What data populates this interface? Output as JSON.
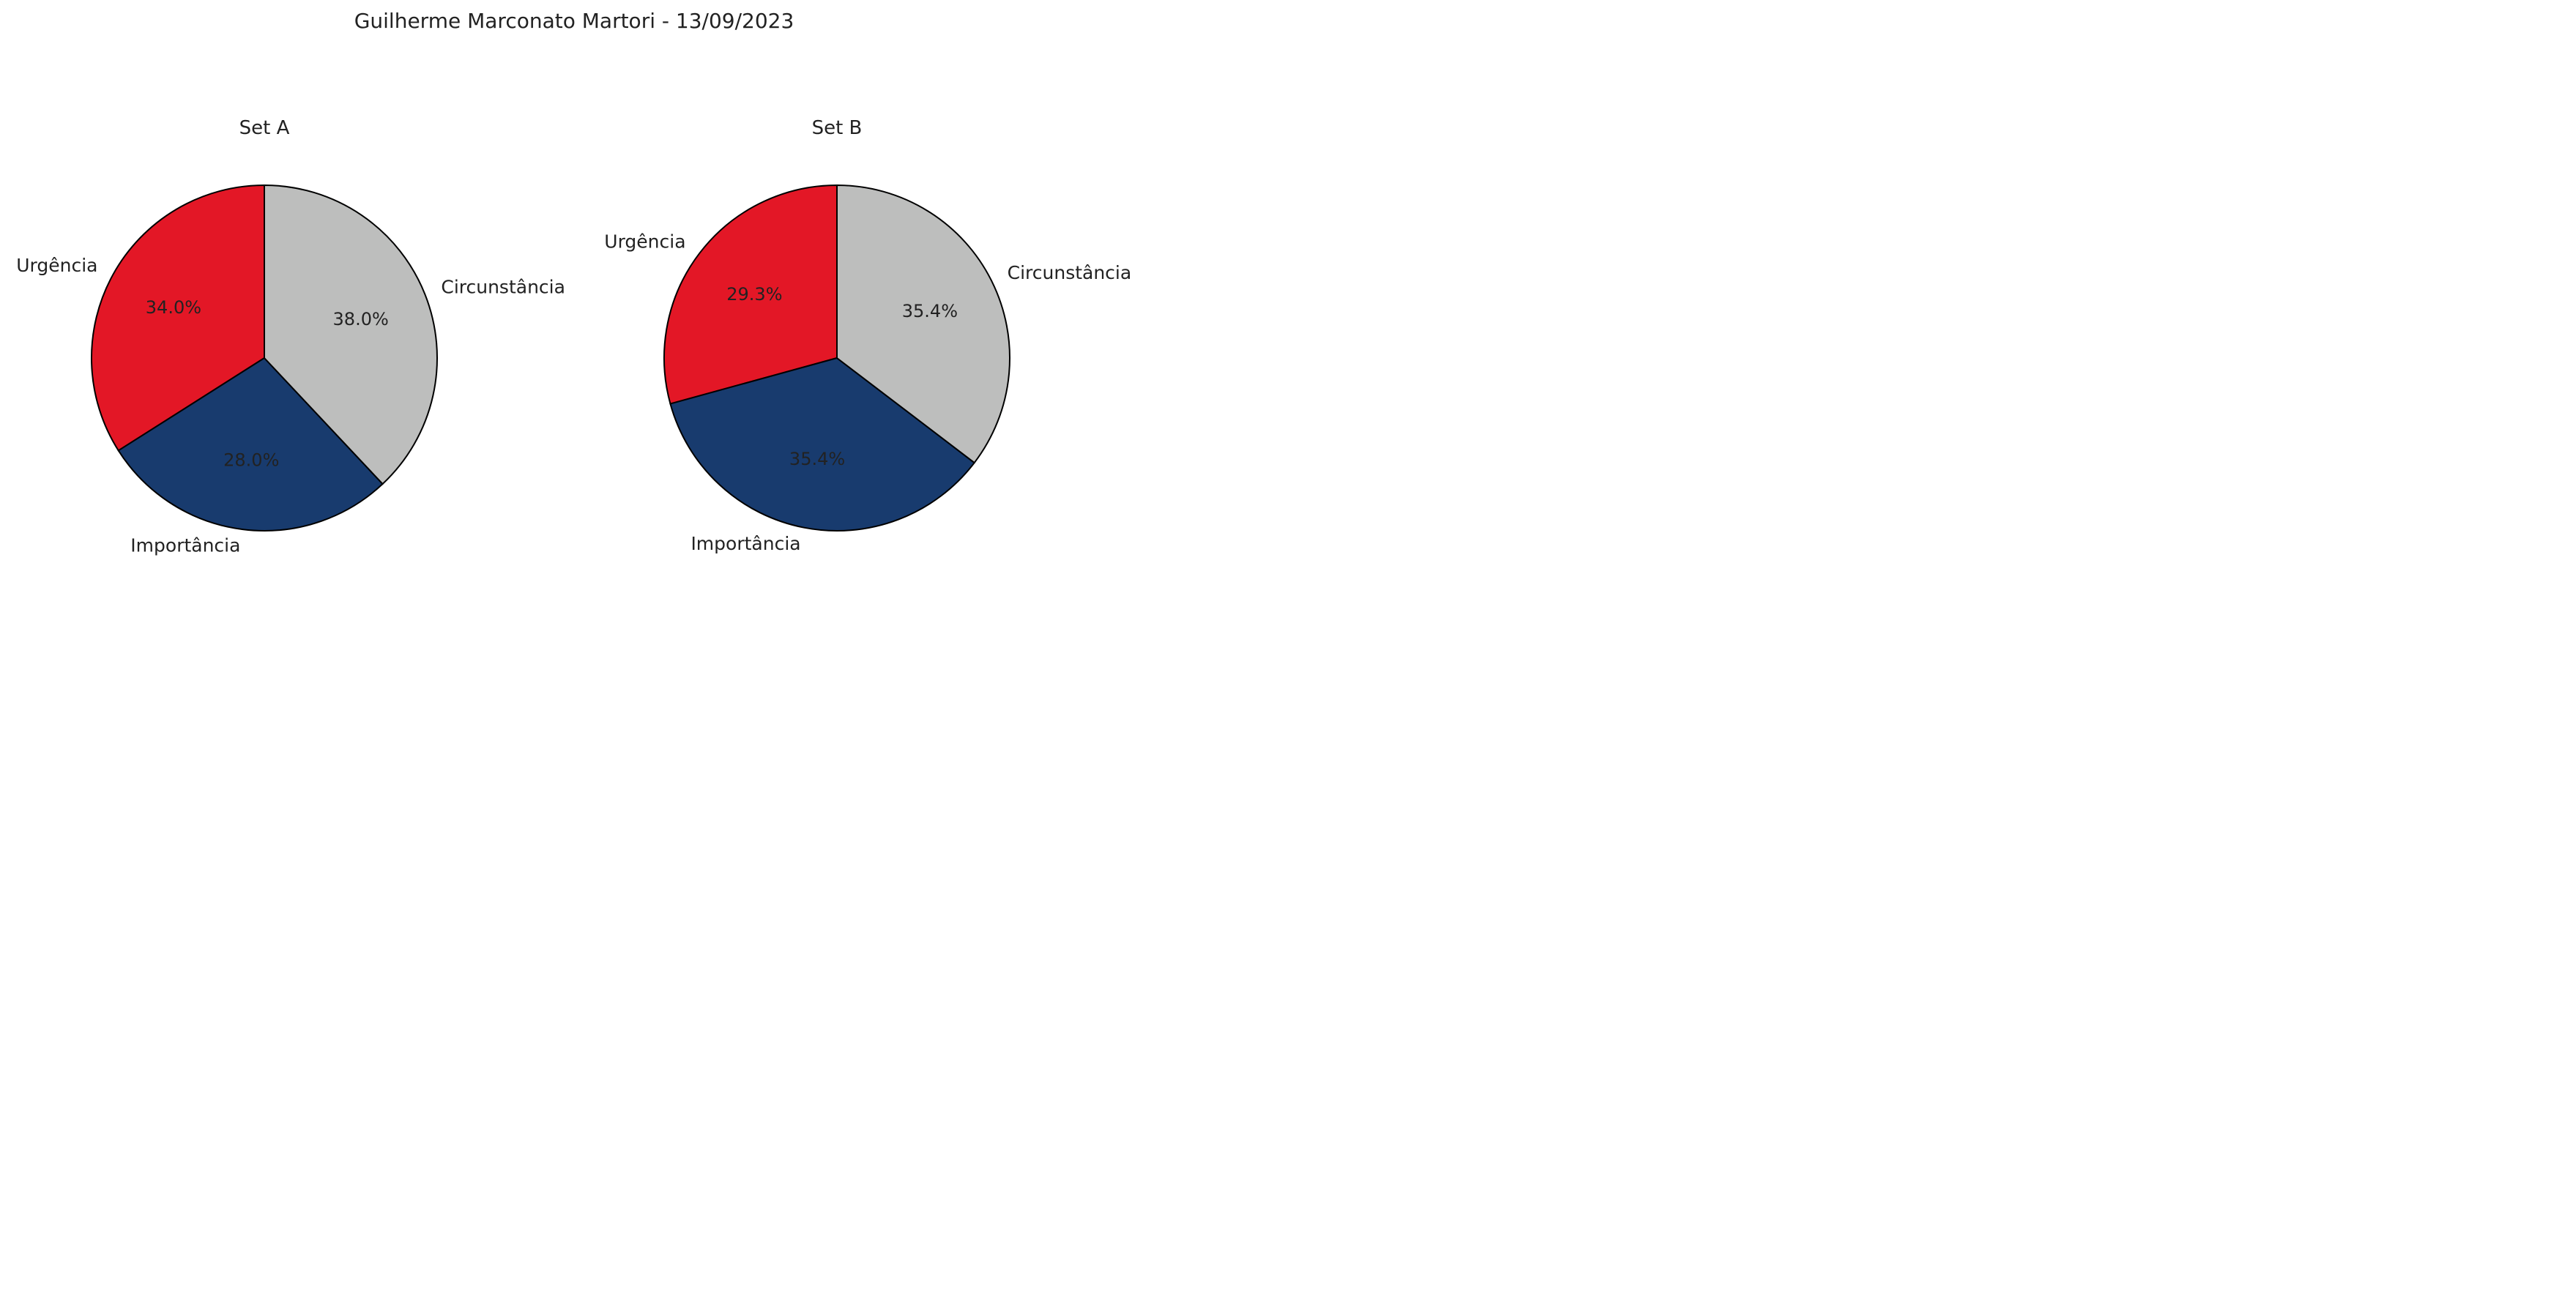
{
  "figure": {
    "suptitle": "Guilherme Marconato Martori - 13/09/2023"
  },
  "chart_data": [
    {
      "type": "pie",
      "title": "Set A",
      "labels": [
        "Urgência",
        "Importância",
        "Circunstância"
      ],
      "values": [
        34.0,
        28.0,
        38.0
      ],
      "value_labels": [
        "34.0%",
        "28.0%",
        "38.0%"
      ],
      "colors": [
        "#e31726",
        "#183b6e",
        "#bdbebd"
      ],
      "start_angle_deg": 90,
      "direction": "counterclockwise"
    },
    {
      "type": "pie",
      "title": "Set B",
      "labels": [
        "Urgência",
        "Importância",
        "Circunstância"
      ],
      "values": [
        29.3,
        35.4,
        35.4
      ],
      "value_labels": [
        "29.3%",
        "35.4%",
        "35.4%"
      ],
      "colors": [
        "#e31726",
        "#183b6e",
        "#bdbebd"
      ],
      "start_angle_deg": 90,
      "direction": "counterclockwise"
    }
  ]
}
